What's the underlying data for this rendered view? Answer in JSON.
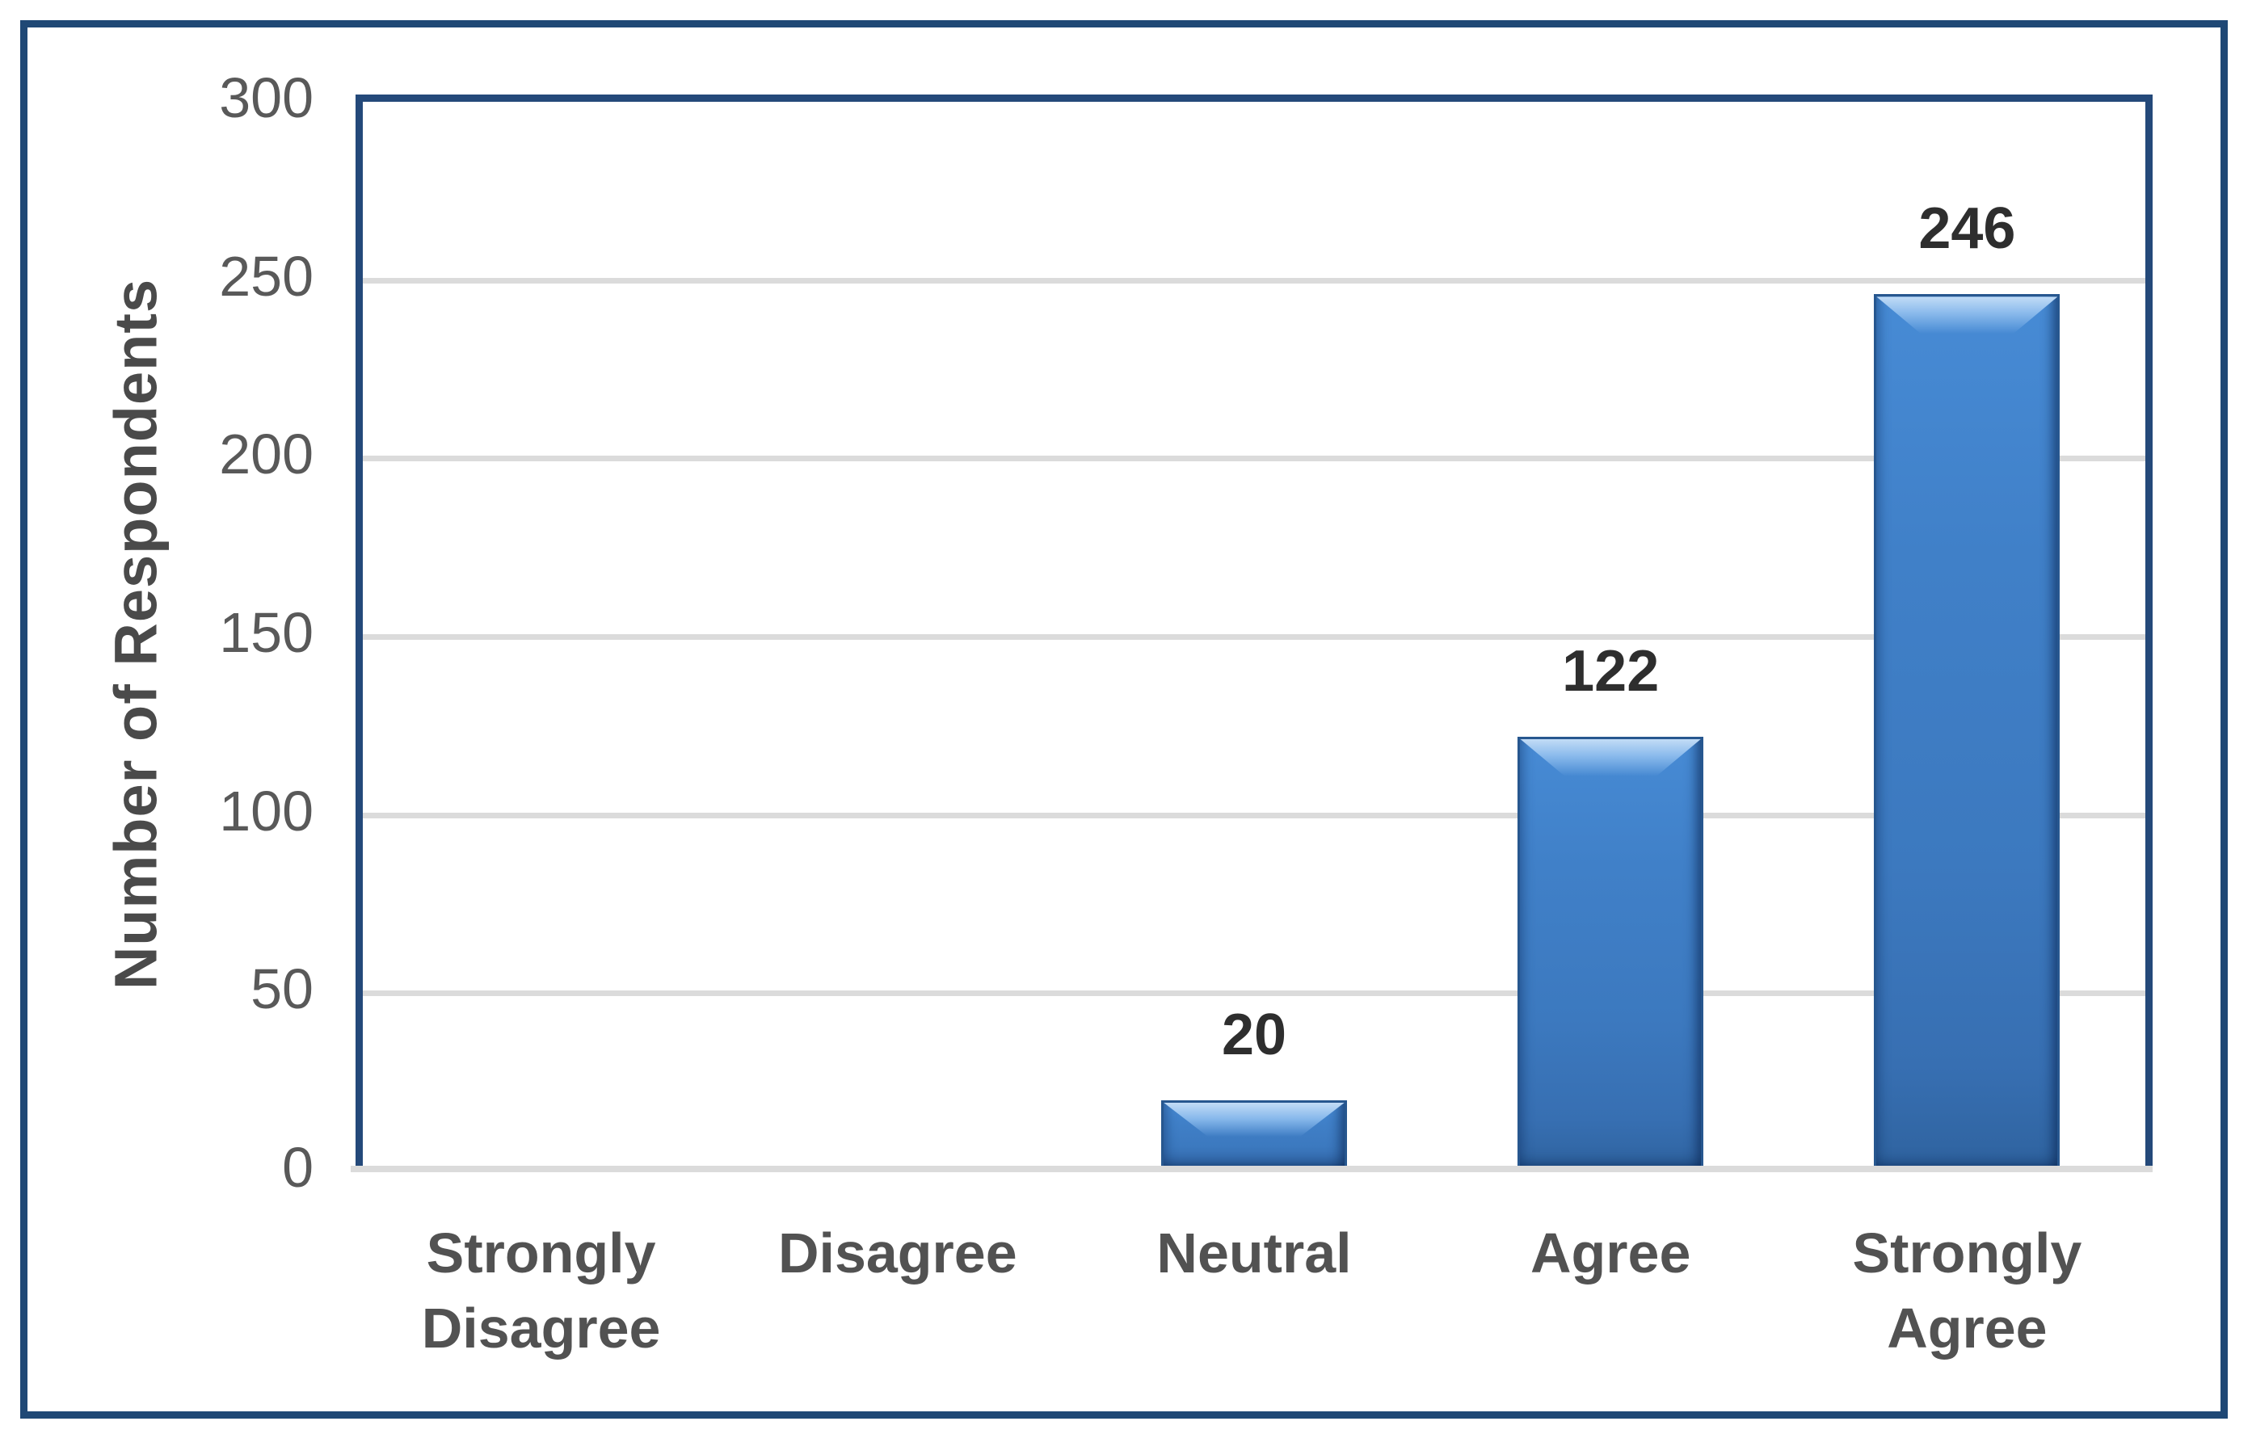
{
  "chart_data": {
    "type": "bar",
    "title": "",
    "xlabel": "",
    "ylabel": "Number of Respondents",
    "categories": [
      "Strongly Disagree",
      "Disagree",
      "Neutral",
      "Agree",
      "Strongly Agree"
    ],
    "values": [
      0,
      0,
      20,
      122,
      246
    ],
    "data_labels": [
      "",
      "",
      "20",
      "122",
      "246"
    ],
    "ylim": [
      0,
      300
    ],
    "yticks": [
      300,
      250,
      200,
      150,
      100,
      50,
      0
    ],
    "grid": "horizontal",
    "legend_position": "none",
    "colors": {
      "bar_fill": "#4080C8",
      "bar_edge": "#27578F",
      "bar_highlight": "#C2DCF6",
      "plot_border": "#24497A",
      "outer_frame": "#1F4875",
      "gridline": "#DBDBDB",
      "axis_line": "#DBDBDB",
      "tick_label": "#595959",
      "axis_title": "#4A4A4A",
      "category_label": "#525252",
      "data_label": "#2E2E2E"
    }
  }
}
